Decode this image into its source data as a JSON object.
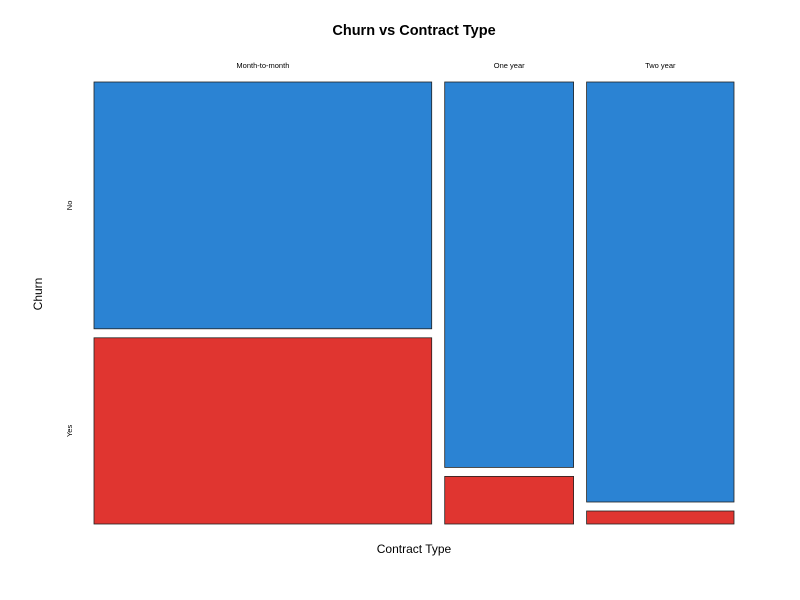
{
  "chart_data": {
    "type": "mosaic",
    "title": "Churn vs Contract Type",
    "xlabel": "Contract Type",
    "ylabel": "Churn",
    "categories": [
      "Month-to-month",
      "One year",
      "Two year"
    ],
    "category_proportions": [
      0.55,
      0.21,
      0.24
    ],
    "series": [
      {
        "name": "No",
        "color": "#2b83d3",
        "values": [
          0.57,
          0.89,
          0.97
        ]
      },
      {
        "name": "Yes",
        "color": "#e03530",
        "values": [
          0.43,
          0.11,
          0.03
        ]
      }
    ],
    "grid": false,
    "legend": "none"
  }
}
